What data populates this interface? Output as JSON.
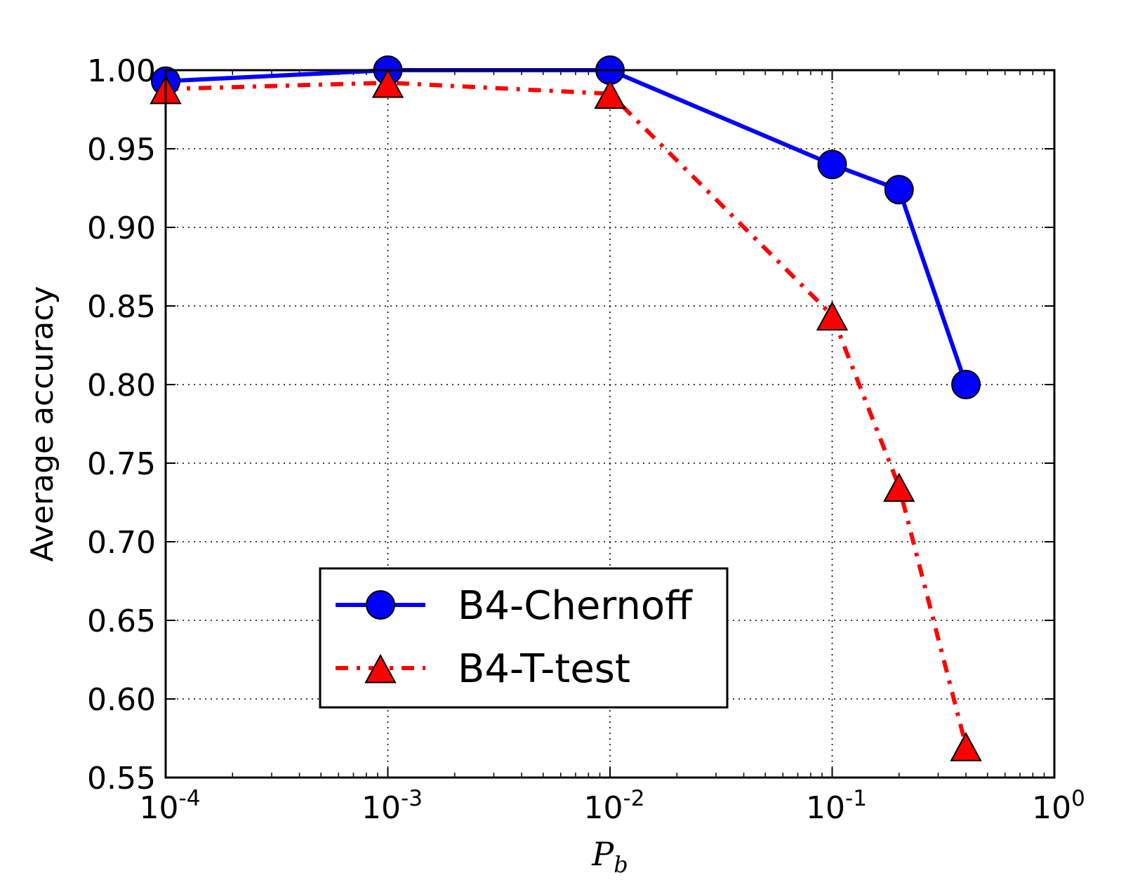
{
  "chart_data": {
    "type": "line",
    "xscale": "log",
    "xlabel_main": "P",
    "xlabel_sub": "b",
    "ylabel": "Average accuracy",
    "xlim": [
      0.0001,
      1
    ],
    "ylim": [
      0.55,
      1.0
    ],
    "grid": true,
    "legend_position": "lower-left",
    "x_ticks": [
      {
        "value": 0.0001,
        "base": "10",
        "exp": "-4"
      },
      {
        "value": 0.001,
        "base": "10",
        "exp": "-3"
      },
      {
        "value": 0.01,
        "base": "10",
        "exp": "-2"
      },
      {
        "value": 0.1,
        "base": "10",
        "exp": "-1"
      },
      {
        "value": 1,
        "base": "10",
        "exp": "0"
      }
    ],
    "y_ticks": [
      {
        "value": 0.55,
        "label": "0.55"
      },
      {
        "value": 0.6,
        "label": "0.60"
      },
      {
        "value": 0.65,
        "label": "0.65"
      },
      {
        "value": 0.7,
        "label": "0.70"
      },
      {
        "value": 0.75,
        "label": "0.75"
      },
      {
        "value": 0.8,
        "label": "0.80"
      },
      {
        "value": 0.85,
        "label": "0.85"
      },
      {
        "value": 0.9,
        "label": "0.90"
      },
      {
        "value": 0.95,
        "label": "0.95"
      },
      {
        "value": 1.0,
        "label": "1.00"
      }
    ],
    "series": [
      {
        "name": "B4-Chernoff",
        "color": "#0000ff",
        "marker": "circle",
        "line_style": "solid",
        "x": [
          0.0001,
          0.001,
          0.01,
          0.1,
          0.2,
          0.4
        ],
        "y": [
          0.993,
          1.0,
          1.0,
          0.94,
          0.924,
          0.8
        ]
      },
      {
        "name": "B4-T-test",
        "color": "#ff0000",
        "marker": "triangle",
        "line_style": "dashdot",
        "x": [
          0.0001,
          0.001,
          0.01,
          0.1,
          0.2,
          0.4
        ],
        "y": [
          0.988,
          0.992,
          0.985,
          0.844,
          0.735,
          0.57
        ]
      }
    ]
  }
}
